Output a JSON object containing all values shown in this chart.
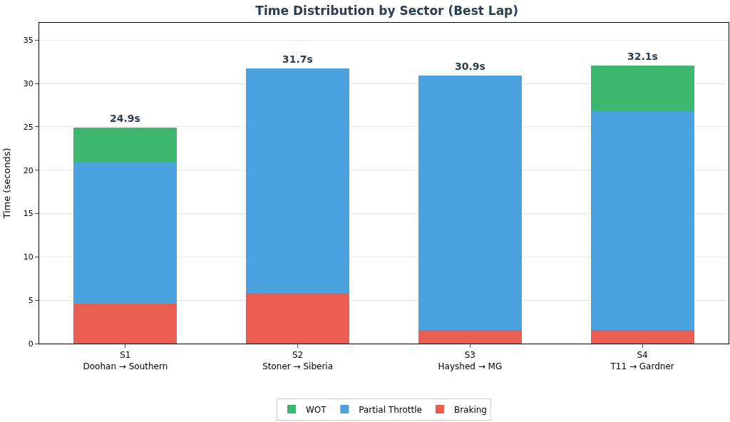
{
  "chart_data": {
    "type": "bar",
    "title": "Time Distribution by Sector (Best Lap)",
    "ylabel": "Time (seconds)",
    "categories": [
      "S1\nDoohan → Southern",
      "S2\nStoner → Siberia",
      "S3\nHayshed → MG",
      "S4\nT11 → Gardner"
    ],
    "stacked": true,
    "series": [
      {
        "name": "Braking",
        "color": "#e95e50",
        "values": [
          4.6,
          5.8,
          1.6,
          1.6
        ]
      },
      {
        "name": "Partial Throttle",
        "color": "#4aa3df",
        "values": [
          16.3,
          25.9,
          29.3,
          25.2
        ]
      },
      {
        "name": "WOT",
        "color": "#3db66f",
        "values": [
          4.0,
          0,
          0,
          5.3
        ]
      }
    ],
    "totals": [
      "24.9s",
      "31.7s",
      "30.9s",
      "32.1s"
    ],
    "ylim": [
      0,
      37
    ],
    "yticks": [
      0,
      5,
      10,
      15,
      20,
      25,
      30,
      35
    ],
    "grid": "y",
    "legend": "bottom"
  }
}
